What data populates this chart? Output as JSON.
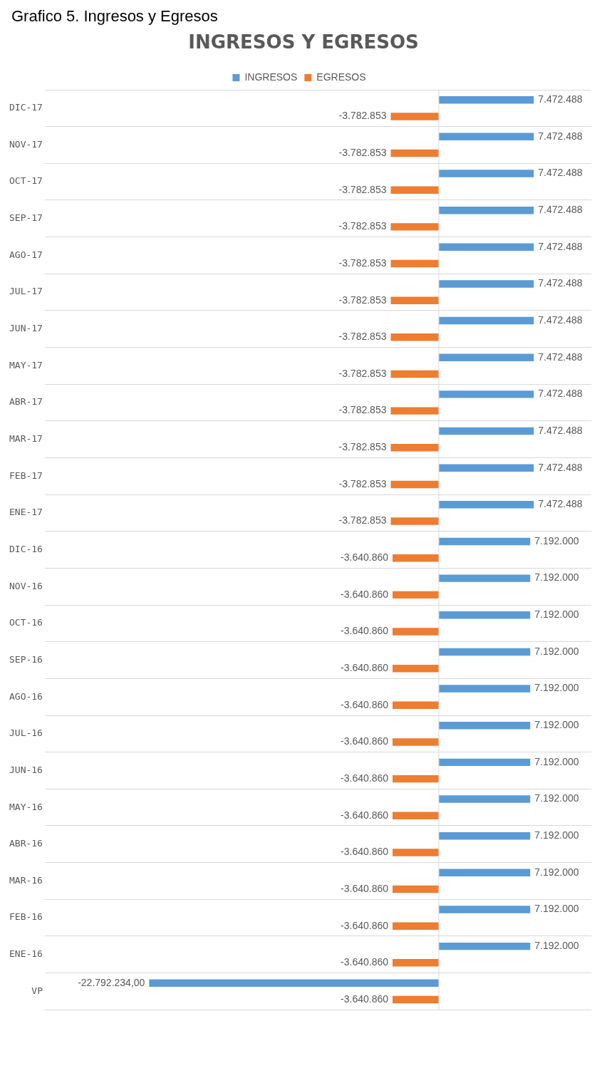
{
  "chart_data": {
    "type": "bar",
    "orientation": "horizontal",
    "title": "INGRESOS Y EGRESOS",
    "annotations": [
      "Grafico 5. Ingresos y Egresos"
    ],
    "categories": [
      "DIC-17",
      "NOV-17",
      "OCT-17",
      "SEP-17",
      "AGO-17",
      "JUL-17",
      "JUN-17",
      "MAY-17",
      "ABR-17",
      "MAR-17",
      "FEB-17",
      "ENE-17",
      "DIC-16",
      "NOV-16",
      "OCT-16",
      "SEP-16",
      "AGO-16",
      "JUL-16",
      "JUN-16",
      "MAY-16",
      "ABR-16",
      "MAR-16",
      "FEB-16",
      "ENE-16",
      "VP"
    ],
    "series": [
      {
        "name": "INGRESOS",
        "color": "#5b9bd5",
        "values": [
          7472488,
          7472488,
          7472488,
          7472488,
          7472488,
          7472488,
          7472488,
          7472488,
          7472488,
          7472488,
          7472488,
          7472488,
          7192000,
          7192000,
          7192000,
          7192000,
          7192000,
          7192000,
          7192000,
          7192000,
          7192000,
          7192000,
          7192000,
          7192000,
          -22792234
        ],
        "value_labels": [
          "7.472.488",
          "7.472.488",
          "7.472.488",
          "7.472.488",
          "7.472.488",
          "7.472.488",
          "7.472.488",
          "7.472.488",
          "7.472.488",
          "7.472.488",
          "7.472.488",
          "7.472.488",
          "7.192.000",
          "7.192.000",
          "7.192.000",
          "7.192.000",
          "7.192.000",
          "7.192.000",
          "7.192.000",
          "7.192.000",
          "7.192.000",
          "7.192.000",
          "7.192.000",
          "7.192.000",
          "-22.792.234,00"
        ]
      },
      {
        "name": "EGRESOS",
        "color": "#ed7d31",
        "values": [
          -3782853,
          -3782853,
          -3782853,
          -3782853,
          -3782853,
          -3782853,
          -3782853,
          -3782853,
          -3782853,
          -3782853,
          -3782853,
          -3782853,
          -3640860,
          -3640860,
          -3640860,
          -3640860,
          -3640860,
          -3640860,
          -3640860,
          -3640860,
          -3640860,
          -3640860,
          -3640860,
          -3640860,
          -3640860
        ],
        "value_labels": [
          "-3.782.853",
          "-3.782.853",
          "-3.782.853",
          "-3.782.853",
          "-3.782.853",
          "-3.782.853",
          "-3.782.853",
          "-3.782.853",
          "-3.782.853",
          "-3.782.853",
          "-3.782.853",
          "-3.782.853",
          "-3.640.860",
          "-3.640.860",
          "-3.640.860",
          "-3.640.860",
          "-3.640.860",
          "-3.640.860",
          "-3.640.860",
          "-3.640.860",
          "-3.640.860",
          "-3.640.860",
          "-3.640.860",
          "-3.640.860",
          "-3.640.860"
        ]
      }
    ],
    "xlim": [
      -31000000,
      12000000
    ],
    "tick_labels": "y",
    "grid": "y",
    "legend": "top"
  }
}
